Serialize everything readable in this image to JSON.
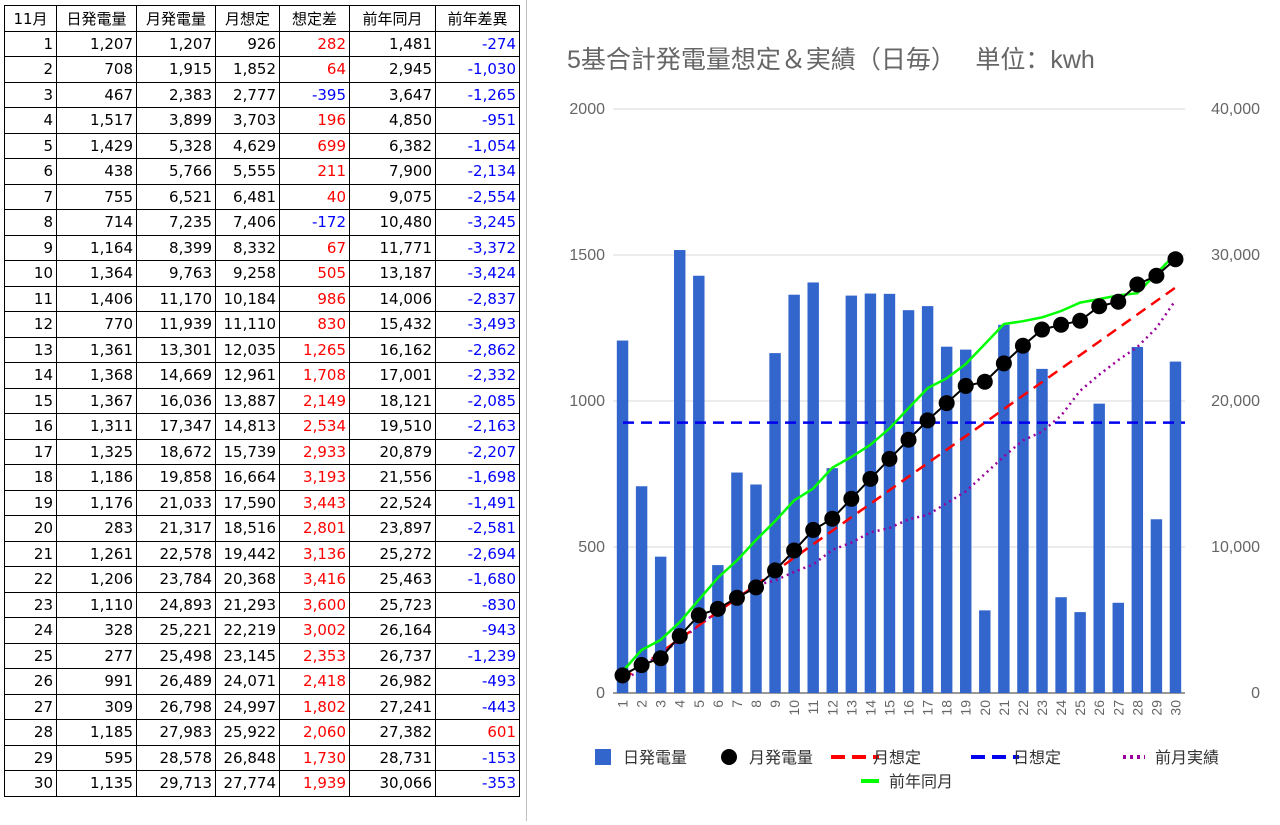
{
  "table": {
    "headers": [
      "11月",
      "日発電量",
      "月発電量",
      "月想定",
      "想定差",
      "前年同月",
      "前年差異"
    ],
    "rows": [
      [
        "1",
        "1,207",
        "1,207",
        "926",
        "282",
        "1,481",
        "-274"
      ],
      [
        "2",
        "708",
        "1,915",
        "1,852",
        "64",
        "2,945",
        "-1,030"
      ],
      [
        "3",
        "467",
        "2,383",
        "2,777",
        "-395",
        "3,647",
        "-1,265"
      ],
      [
        "4",
        "1,517",
        "3,899",
        "3,703",
        "196",
        "4,850",
        "-951"
      ],
      [
        "5",
        "1,429",
        "5,328",
        "4,629",
        "699",
        "6,382",
        "-1,054"
      ],
      [
        "6",
        "438",
        "5,766",
        "5,555",
        "211",
        "7,900",
        "-2,134"
      ],
      [
        "7",
        "755",
        "6,521",
        "6,481",
        "40",
        "9,075",
        "-2,554"
      ],
      [
        "8",
        "714",
        "7,235",
        "7,406",
        "-172",
        "10,480",
        "-3,245"
      ],
      [
        "9",
        "1,164",
        "8,399",
        "8,332",
        "67",
        "11,771",
        "-3,372"
      ],
      [
        "10",
        "1,364",
        "9,763",
        "9,258",
        "505",
        "13,187",
        "-3,424"
      ],
      [
        "11",
        "1,406",
        "11,170",
        "10,184",
        "986",
        "14,006",
        "-2,837"
      ],
      [
        "12",
        "770",
        "11,939",
        "11,110",
        "830",
        "15,432",
        "-3,493"
      ],
      [
        "13",
        "1,361",
        "13,301",
        "12,035",
        "1,265",
        "16,162",
        "-2,862"
      ],
      [
        "14",
        "1,368",
        "14,669",
        "12,961",
        "1,708",
        "17,001",
        "-2,332"
      ],
      [
        "15",
        "1,367",
        "16,036",
        "13,887",
        "2,149",
        "18,121",
        "-2,085"
      ],
      [
        "16",
        "1,311",
        "17,347",
        "14,813",
        "2,534",
        "19,510",
        "-2,163"
      ],
      [
        "17",
        "1,325",
        "18,672",
        "15,739",
        "2,933",
        "20,879",
        "-2,207"
      ],
      [
        "18",
        "1,186",
        "19,858",
        "16,664",
        "3,193",
        "21,556",
        "-1,698"
      ],
      [
        "19",
        "1,176",
        "21,033",
        "17,590",
        "3,443",
        "22,524",
        "-1,491"
      ],
      [
        "20",
        "283",
        "21,317",
        "18,516",
        "2,801",
        "23,897",
        "-2,581"
      ],
      [
        "21",
        "1,261",
        "22,578",
        "19,442",
        "3,136",
        "25,272",
        "-2,694"
      ],
      [
        "22",
        "1,206",
        "23,784",
        "20,368",
        "3,416",
        "25,463",
        "-1,680"
      ],
      [
        "23",
        "1,110",
        "24,893",
        "21,293",
        "3,600",
        "25,723",
        "-830"
      ],
      [
        "24",
        "328",
        "25,221",
        "22,219",
        "3,002",
        "26,164",
        "-943"
      ],
      [
        "25",
        "277",
        "25,498",
        "23,145",
        "2,353",
        "26,737",
        "-1,239"
      ],
      [
        "26",
        "991",
        "26,489",
        "24,071",
        "2,418",
        "26,982",
        "-493"
      ],
      [
        "27",
        "309",
        "26,798",
        "24,997",
        "1,802",
        "27,241",
        "-443"
      ],
      [
        "28",
        "1,185",
        "27,983",
        "25,922",
        "2,060",
        "27,382",
        "601"
      ],
      [
        "29",
        "595",
        "28,578",
        "26,848",
        "1,730",
        "28,731",
        "-153"
      ],
      [
        "30",
        "1,135",
        "29,713",
        "27,774",
        "1,939",
        "30,066",
        "-353"
      ]
    ],
    "positive_color": "#ff0000",
    "negative_color": "#0000ff"
  },
  "chart_data": {
    "type": "bar",
    "title": "5基合計発電量想定＆実績（日毎）　 単位：kwh",
    "categories": [
      "1",
      "2",
      "3",
      "4",
      "5",
      "6",
      "7",
      "8",
      "9",
      "10",
      "11",
      "12",
      "13",
      "14",
      "15",
      "16",
      "17",
      "18",
      "19",
      "20",
      "21",
      "22",
      "23",
      "24",
      "25",
      "26",
      "27",
      "28",
      "29",
      "30"
    ],
    "ylim_left": [
      0,
      2000
    ],
    "ylim_right": [
      0,
      40000
    ],
    "left_ticks": [
      "0",
      "500",
      "1000",
      "1500",
      "2000"
    ],
    "right_ticks": [
      "0",
      "10,000",
      "20,000",
      "30,000",
      "40,000"
    ],
    "grid": true,
    "legend_position": "bottom",
    "series": [
      {
        "name": "日発電量",
        "kind": "bar",
        "axis": "left",
        "color": "#3366cc",
        "values": [
          1207,
          708,
          467,
          1517,
          1429,
          438,
          755,
          714,
          1164,
          1364,
          1406,
          770,
          1361,
          1368,
          1367,
          1311,
          1325,
          1186,
          1176,
          283,
          1261,
          1206,
          1110,
          328,
          277,
          991,
          309,
          1185,
          595,
          1135
        ]
      },
      {
        "name": "月発電量",
        "kind": "line-marker",
        "axis": "right",
        "color": "#000000",
        "values": [
          1207,
          1915,
          2383,
          3899,
          5328,
          5766,
          6521,
          7235,
          8399,
          9763,
          11170,
          11939,
          13301,
          14669,
          16036,
          17347,
          18672,
          19858,
          21033,
          21317,
          22578,
          23784,
          24893,
          25221,
          25498,
          26489,
          26798,
          27983,
          28578,
          29713
        ]
      },
      {
        "name": "月想定",
        "kind": "dashed-line",
        "axis": "right",
        "color": "#ff0000",
        "values": [
          926,
          1852,
          2777,
          3703,
          4629,
          5555,
          6481,
          7406,
          8332,
          9258,
          10184,
          11110,
          12035,
          12961,
          13887,
          14813,
          15739,
          16664,
          17590,
          18516,
          19442,
          20368,
          21293,
          22219,
          23145,
          24071,
          24997,
          25922,
          26848,
          27774
        ]
      },
      {
        "name": "日想定",
        "kind": "dashed-line",
        "axis": "left",
        "color": "#0000ee",
        "values": [
          926,
          926,
          926,
          926,
          926,
          926,
          926,
          926,
          926,
          926,
          926,
          926,
          926,
          926,
          926,
          926,
          926,
          926,
          926,
          926,
          926,
          926,
          926,
          926,
          926,
          926,
          926,
          926,
          926,
          926
        ]
      },
      {
        "name": "前月実績",
        "kind": "dotted-line",
        "axis": "right",
        "color": "#990099",
        "values": [
          700,
          1750,
          2700,
          3600,
          4600,
          5600,
          6500,
          7400,
          7700,
          8300,
          8800,
          9800,
          10300,
          11000,
          11300,
          11900,
          12200,
          13000,
          13800,
          15000,
          16200,
          17300,
          17900,
          19000,
          20700,
          21800,
          22800,
          23700,
          25000,
          26900
        ]
      },
      {
        "name": "前年同月",
        "kind": "line",
        "axis": "right",
        "color": "#00ff00",
        "values": [
          1481,
          2945,
          3647,
          4850,
          6382,
          7900,
          9075,
          10480,
          11771,
          13187,
          14006,
          15432,
          16162,
          17001,
          18121,
          19510,
          20879,
          21556,
          22524,
          23897,
          25272,
          25463,
          25723,
          26164,
          26737,
          26982,
          27241,
          27382,
          28731,
          30066
        ]
      }
    ]
  }
}
